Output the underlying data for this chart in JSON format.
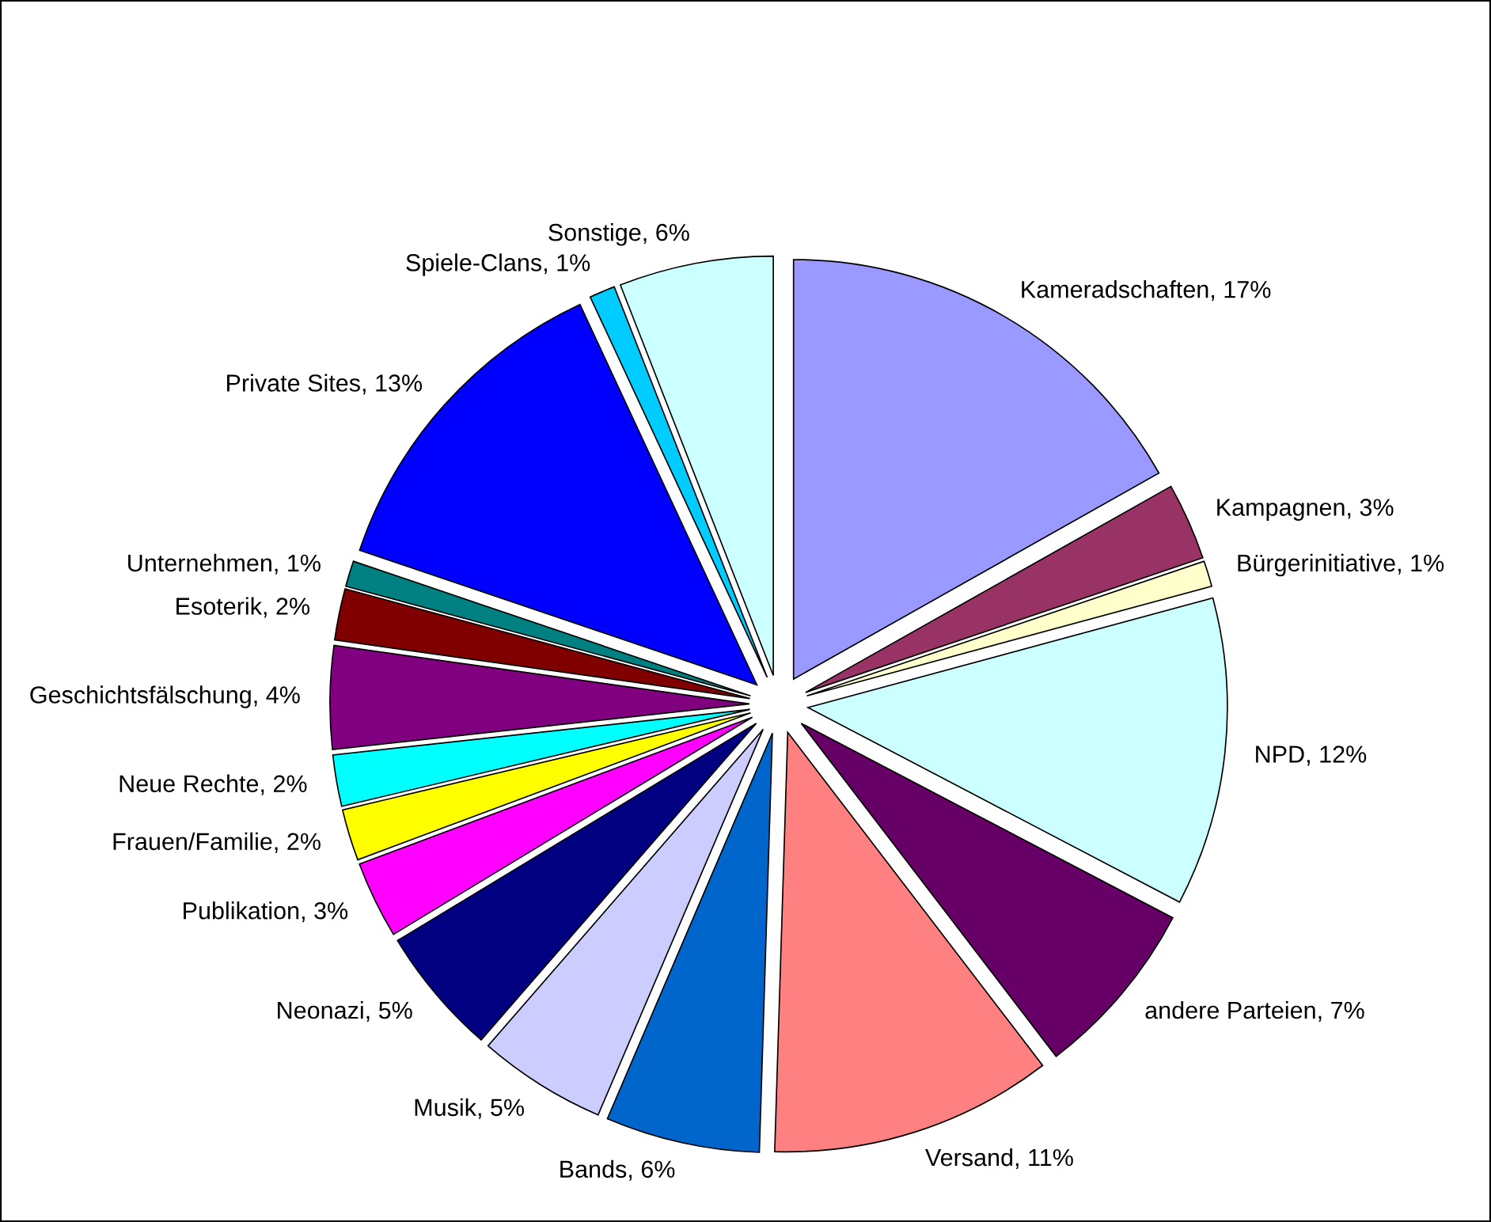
{
  "chart_data": {
    "type": "pie",
    "categories": [
      "Kameradschaften",
      "Kampagnen",
      "Bürgerinitiative",
      "NPD",
      "andere Parteien",
      "Versand",
      "Bands",
      "Musik",
      "Neonazi",
      "Publikation",
      "Frauen/Familie",
      "Neue Rechte",
      "Geschichtsfälschung",
      "Esoterik",
      "Unternehmen",
      "Private Sites",
      "Spiele-Clans",
      "Sonstige"
    ],
    "values": [
      17,
      3,
      1,
      12,
      7,
      11,
      6,
      5,
      5,
      3,
      2,
      2,
      4,
      2,
      1,
      13,
      1,
      6
    ],
    "value_labels": [
      "17%",
      "3%",
      "1%",
      "12%",
      "7%",
      "11%",
      "6%",
      "5%",
      "5%",
      "3%",
      "2%",
      "2%",
      "4%",
      "2%",
      "1%",
      "13%",
      "1%",
      "6%"
    ],
    "colors": [
      "#9999ff",
      "#993366",
      "#ffffcc",
      "#ccffff",
      "#660066",
      "#ff8080",
      "#0066cc",
      "#ccccff",
      "#000080",
      "#ff00ff",
      "#ffff00",
      "#00ffff",
      "#800080",
      "#800000",
      "#008080",
      "#0000ff",
      "#00ccff",
      "#ccffff"
    ],
    "legend": false
  }
}
